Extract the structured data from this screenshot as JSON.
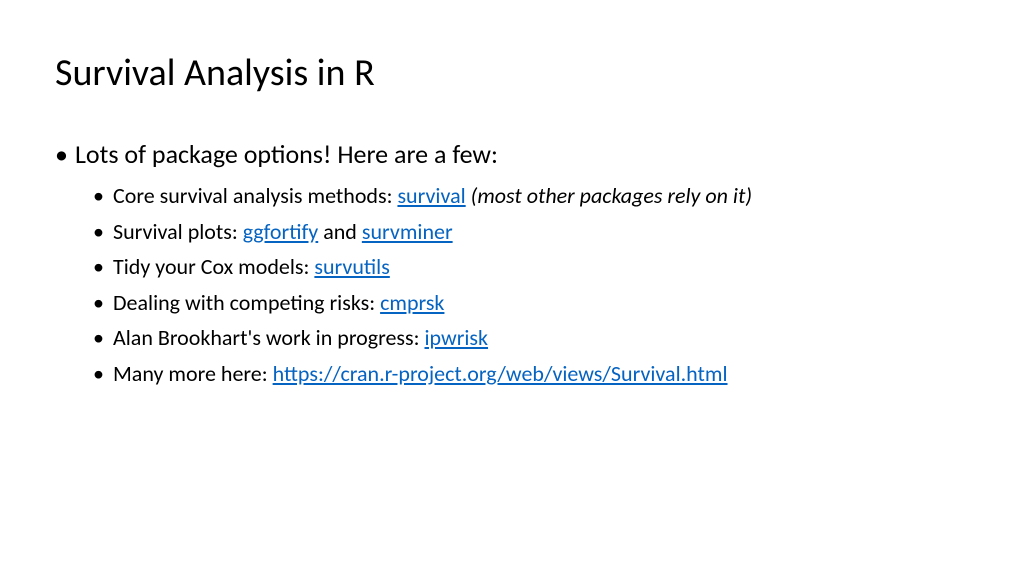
{
  "slide": {
    "title": "Survival Analysis in R",
    "background_color": "#ffffff",
    "title_fontsize": 38,
    "title_color": "#000000",
    "body_color": "#000000",
    "link_color": "#0563c1",
    "level1_fontsize": 26,
    "level2_fontsize": 22,
    "bullets": {
      "intro": "Lots of package options! Here are a few:",
      "items": [
        {
          "prefix": "Core survival analysis methods: ",
          "link": "survival",
          "suffix_spacer": "   ",
          "note": "(most other packages rely on it)"
        },
        {
          "prefix": "Survival plots: ",
          "link": "ggfortify",
          "mid": " and ",
          "link2": "survminer"
        },
        {
          "prefix": "Tidy your Cox models: ",
          "link": "survutils"
        },
        {
          "prefix": "Dealing with competing risks: ",
          "link": "cmprsk"
        },
        {
          "prefix": "Alan Brookhart's work in progress: ",
          "link": "ipwrisk"
        },
        {
          "prefix": "Many more here: ",
          "link": "https://cran.r-project.org/web/views/Survival.html"
        }
      ]
    }
  }
}
